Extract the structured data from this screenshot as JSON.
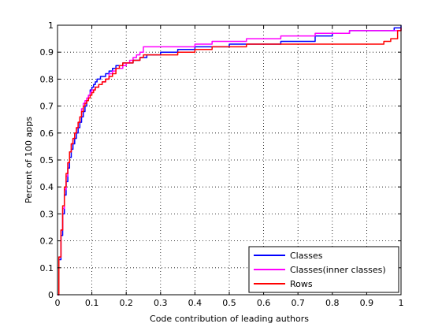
{
  "chart_data": {
    "type": "line",
    "title": "",
    "xlabel": "Code contribution of leading authors",
    "ylabel": "Percent of 100 apps",
    "xlim": [
      0,
      1
    ],
    "ylim": [
      0,
      1
    ],
    "xticks": [
      "0",
      "0.1",
      "0.2",
      "0.3",
      "0.4",
      "0.5",
      "0.6",
      "0.7",
      "0.8",
      "0.9",
      "1"
    ],
    "yticks": [
      "0",
      "0.1",
      "0.2",
      "0.3",
      "0.4",
      "0.5",
      "0.6",
      "0.7",
      "0.8",
      "0.9",
      "1"
    ],
    "grid": true,
    "legend_position": "bottom-right",
    "series": [
      {
        "name": "Classes",
        "color": "#0000ff",
        "x": [
          0,
          0.004,
          0.01,
          0.015,
          0.02,
          0.025,
          0.03,
          0.035,
          0.04,
          0.045,
          0.05,
          0.055,
          0.06,
          0.065,
          0.07,
          0.075,
          0.08,
          0.085,
          0.09,
          0.095,
          0.1,
          0.105,
          0.11,
          0.115,
          0.12,
          0.125,
          0.13,
          0.14,
          0.15,
          0.16,
          0.17,
          0.18,
          0.19,
          0.2,
          0.21,
          0.22,
          0.23,
          0.24,
          0.25,
          0.26,
          0.28,
          0.3,
          0.32,
          0.35,
          0.38,
          0.4,
          0.45,
          0.5,
          0.55,
          0.6,
          0.65,
          0.7,
          0.75,
          0.8,
          0.85,
          0.9,
          0.95,
          0.98,
          1.0
        ],
        "y": [
          0,
          0.13,
          0.22,
          0.3,
          0.37,
          0.42,
          0.47,
          0.51,
          0.54,
          0.56,
          0.58,
          0.6,
          0.62,
          0.64,
          0.66,
          0.68,
          0.7,
          0.72,
          0.74,
          0.76,
          0.77,
          0.78,
          0.79,
          0.8,
          0.8,
          0.81,
          0.81,
          0.82,
          0.83,
          0.84,
          0.85,
          0.85,
          0.86,
          0.86,
          0.86,
          0.87,
          0.87,
          0.88,
          0.88,
          0.89,
          0.89,
          0.9,
          0.9,
          0.91,
          0.91,
          0.92,
          0.92,
          0.93,
          0.93,
          0.93,
          0.94,
          0.94,
          0.96,
          0.97,
          0.98,
          0.98,
          0.98,
          0.99,
          1.0
        ]
      },
      {
        "name": "Classes(inner classes)",
        "color": "#ff00ff",
        "x": [
          0,
          0.004,
          0.01,
          0.015,
          0.02,
          0.025,
          0.03,
          0.035,
          0.04,
          0.045,
          0.05,
          0.055,
          0.06,
          0.065,
          0.07,
          0.075,
          0.08,
          0.085,
          0.09,
          0.095,
          0.1,
          0.11,
          0.12,
          0.13,
          0.14,
          0.15,
          0.16,
          0.17,
          0.18,
          0.19,
          0.2,
          0.21,
          0.22,
          0.23,
          0.24,
          0.25,
          0.3,
          0.35,
          0.4,
          0.45,
          0.5,
          0.55,
          0.6,
          0.65,
          0.7,
          0.75,
          0.8,
          0.85,
          0.9,
          0.95,
          0.99,
          1.0
        ],
        "y": [
          0,
          0.14,
          0.24,
          0.32,
          0.39,
          0.44,
          0.49,
          0.53,
          0.56,
          0.58,
          0.6,
          0.62,
          0.64,
          0.66,
          0.69,
          0.71,
          0.72,
          0.73,
          0.74,
          0.75,
          0.76,
          0.77,
          0.78,
          0.79,
          0.8,
          0.82,
          0.83,
          0.84,
          0.84,
          0.85,
          0.86,
          0.87,
          0.88,
          0.89,
          0.9,
          0.92,
          0.92,
          0.92,
          0.93,
          0.94,
          0.94,
          0.95,
          0.95,
          0.96,
          0.96,
          0.97,
          0.97,
          0.98,
          0.98,
          0.98,
          0.98,
          0.99
        ]
      },
      {
        "name": "Rows",
        "color": "#ff0000",
        "x": [
          0,
          0.004,
          0.01,
          0.015,
          0.02,
          0.025,
          0.03,
          0.035,
          0.04,
          0.045,
          0.05,
          0.055,
          0.06,
          0.065,
          0.07,
          0.075,
          0.08,
          0.085,
          0.09,
          0.095,
          0.1,
          0.105,
          0.11,
          0.12,
          0.13,
          0.14,
          0.15,
          0.16,
          0.17,
          0.18,
          0.19,
          0.2,
          0.21,
          0.22,
          0.23,
          0.24,
          0.25,
          0.3,
          0.35,
          0.4,
          0.45,
          0.5,
          0.55,
          0.6,
          0.65,
          0.7,
          0.75,
          0.8,
          0.85,
          0.9,
          0.93,
          0.95,
          0.97,
          0.99,
          1.0
        ],
        "y": [
          0,
          0.14,
          0.24,
          0.33,
          0.4,
          0.45,
          0.49,
          0.53,
          0.56,
          0.58,
          0.6,
          0.62,
          0.64,
          0.66,
          0.68,
          0.7,
          0.71,
          0.72,
          0.73,
          0.74,
          0.75,
          0.76,
          0.77,
          0.78,
          0.79,
          0.8,
          0.81,
          0.82,
          0.84,
          0.85,
          0.86,
          0.86,
          0.86,
          0.87,
          0.87,
          0.88,
          0.89,
          0.89,
          0.9,
          0.91,
          0.92,
          0.92,
          0.93,
          0.93,
          0.93,
          0.93,
          0.93,
          0.93,
          0.93,
          0.93,
          0.93,
          0.94,
          0.95,
          0.98,
          0.99
        ]
      }
    ]
  }
}
